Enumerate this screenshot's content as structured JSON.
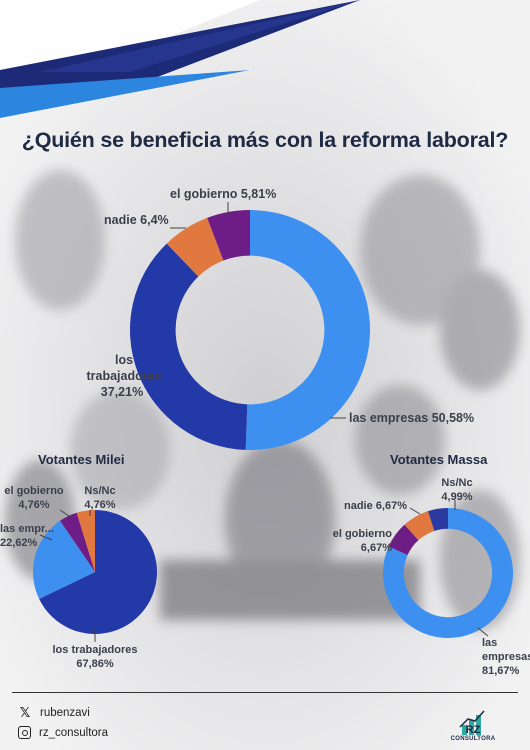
{
  "title": "¿Quién se beneficia más con la reforma laboral?",
  "colors": {
    "las_empresas": "#3d8ff0",
    "los_trabajadores": "#2439a8",
    "nadie": "#e07840",
    "el_gobierno": "#6e1d86",
    "ns_nc": "#2a3aa0",
    "title": "#1f2a44"
  },
  "chart_data": [
    {
      "type": "pie",
      "title": "",
      "donut": true,
      "labels": [
        "las empresas",
        "los trabajadores",
        "nadie",
        "el gobierno"
      ],
      "values": [
        50.58,
        37.21,
        6.4,
        5.81
      ],
      "value_labels": [
        "50,58%",
        "37,21%",
        "6,4%",
        "5,81%"
      ]
    },
    {
      "type": "pie",
      "title": "Votantes Milei",
      "donut": false,
      "labels": [
        "los trabajadores",
        "las empr...",
        "el gobierno",
        "Ns/Nc"
      ],
      "values": [
        67.86,
        22.62,
        4.76,
        4.76
      ],
      "value_labels": [
        "67,86%",
        "22,62%",
        "4,76%",
        "4,76%"
      ]
    },
    {
      "type": "pie",
      "title": "Votantes Massa",
      "donut": true,
      "labels": [
        "las empresas",
        "el gobierno",
        "nadie",
        "Ns/Nc"
      ],
      "values": [
        81.67,
        6.67,
        6.67,
        4.99
      ],
      "value_labels": [
        "81,67%",
        "6,67%",
        "6,67%",
        "4,99%"
      ]
    }
  ],
  "footer": {
    "twitter_handle": "rubenzavi",
    "instagram_handle": "rz_consultora",
    "logo_text": "RZ",
    "logo_subtext": "CONSULTORA",
    "twitter_icon": "x-logo-icon",
    "instagram_icon": "instagram-icon"
  }
}
